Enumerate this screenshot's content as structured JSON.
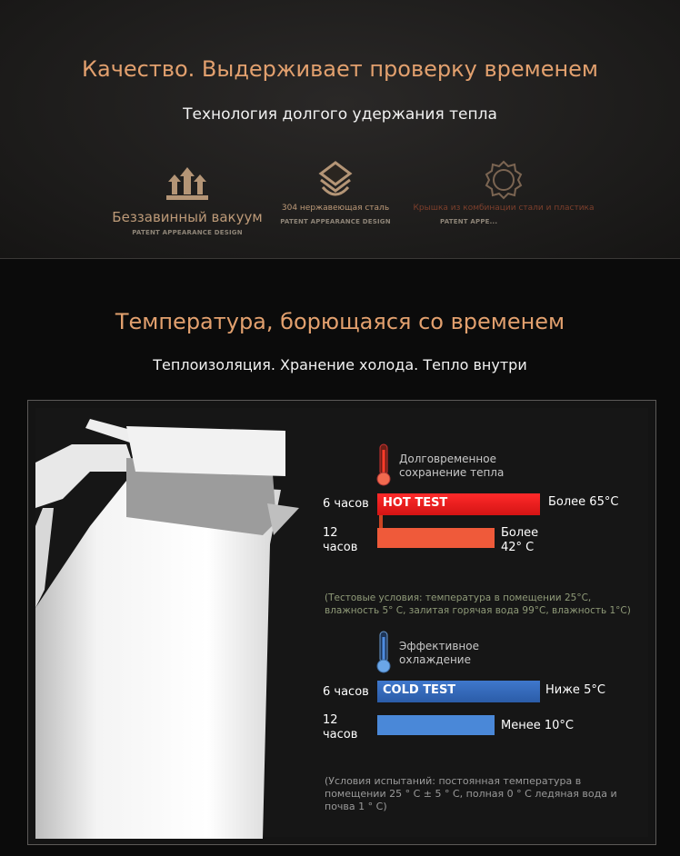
{
  "quality": {
    "title": "Качество. Выдерживает проверку временем",
    "subtitle": "Технология долгого удержания тепла",
    "features": [
      {
        "icon": "arrows-up-icon",
        "label": "Беззавинный вакуум",
        "sub": "PATENT APPEARANCE DESIGN"
      },
      {
        "icon": "layers-icon",
        "label": "304 нержавеющая сталь",
        "sub": "PATENT APPEARANCE DESIGN"
      },
      {
        "icon": "gear-icon",
        "label": "Крышка из комбинации стали и пластика",
        "sub": "PATENT APPE..."
      }
    ]
  },
  "temperature": {
    "title": "Температура, борющаяся со временем",
    "subtitle": "Теплоизоляция. Хранение холода. Тепло внутри",
    "hot": {
      "heading": "Долговременное сохранение тепла",
      "test_label": "HOT TEST",
      "color": "#e01a1a",
      "rows": [
        {
          "time": "6 часов",
          "result": "Более 65°C"
        },
        {
          "time": "12 часов",
          "result": "Более 42° C"
        }
      ],
      "note": "(Тестовые условия: температура в помещении 25°C, влажность 5° C, залитая горячая вода 99°C, влажность 1°C)"
    },
    "cold": {
      "heading": "Эффективное охлаждение",
      "test_label": "COLD TEST",
      "color": "#2f63b3",
      "rows": [
        {
          "time": "6 часов",
          "result": "Ниже 5°C"
        },
        {
          "time": "12 часов",
          "result": "Менее 10°C"
        }
      ],
      "note": "(Условия испытаний: постоянная температура в помещении 25 ° C ± 5 ° C, полная 0 ° C ледяная вода и почва 1 ° C)"
    }
  }
}
